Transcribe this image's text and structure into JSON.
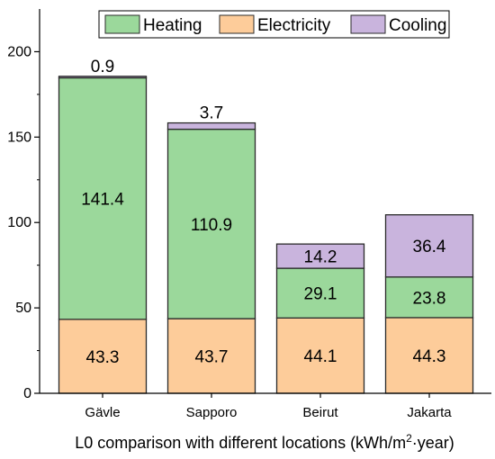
{
  "chart_data": {
    "type": "bar",
    "stacked": true,
    "title": "",
    "xlabel_parts": {
      "main": "L0 comparison with different locations (kWh/m",
      "sup": "2",
      "tail": "·year)"
    },
    "ylabel": "",
    "ylim": [
      0,
      225
    ],
    "yticks": [
      0,
      50,
      100,
      150,
      200
    ],
    "grid": false,
    "legend_position": "top-center",
    "categories": [
      "Gävle",
      "Sapporo",
      "Beirut",
      "Jakarta"
    ],
    "series": [
      {
        "name": "Electricity",
        "color": "#fdcc9a",
        "values": [
          43.3,
          43.7,
          44.1,
          44.3
        ],
        "labels": [
          "43.3",
          "43.7",
          "44.1",
          "44.3"
        ]
      },
      {
        "name": "Heating",
        "color": "#9bd89b",
        "values": [
          141.4,
          110.9,
          29.1,
          23.8
        ],
        "labels": [
          "141.4",
          "110.9",
          "29.1",
          "23.8"
        ]
      },
      {
        "name": "Cooling",
        "color": "#c9b4dd",
        "values": [
          0.9,
          3.7,
          14.2,
          36.4
        ],
        "labels": [
          "0.9",
          "3.7",
          "14.2",
          "36.4"
        ]
      }
    ],
    "legend_order": [
      "Heating",
      "Electricity",
      "Cooling"
    ]
  }
}
